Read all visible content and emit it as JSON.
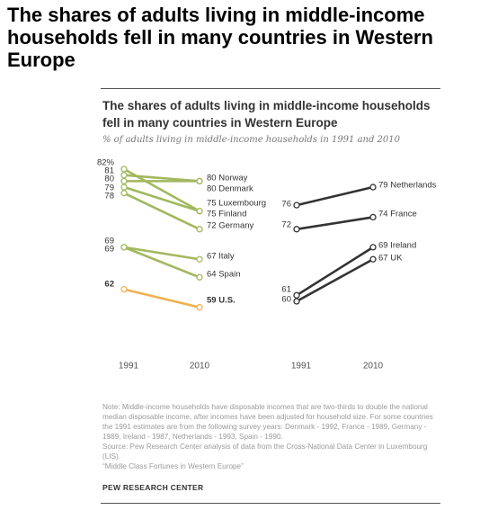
{
  "headline": "The shares of adults living in middle-income households fell in many countries in Western Europe",
  "colors": {
    "europe_line": "#a2b85e",
    "us_line": "#f0b152",
    "other_line": "#333333",
    "label_text": "#333333",
    "axis_text": "#555555"
  },
  "chart_data": {
    "type": "line",
    "title": "The shares of adults living in middle-income households fell in many countries in Western Europe",
    "subtitle": "% of adults living in middle-income households in 1991 and 2010",
    "panels": [
      {
        "x": [
          "1991",
          "2010"
        ],
        "ylim": [
          58,
          83
        ],
        "start_labels": [
          "82%",
          "81",
          "80",
          "79",
          "78",
          "69",
          "69",
          "62"
        ],
        "series": [
          {
            "name": "Norway",
            "values": [
              81,
              80
            ],
            "group": "europe",
            "end_label": "80 Norway"
          },
          {
            "name": "Denmark",
            "values": [
              80,
              80
            ],
            "group": "europe",
            "end_label": "80 Denmark"
          },
          {
            "name": "Luxembourg",
            "values": [
              82,
              75
            ],
            "group": "europe",
            "end_label": "75 Luxembourg"
          },
          {
            "name": "Finland",
            "values": [
              79,
              75
            ],
            "group": "europe",
            "end_label": "75 Finland"
          },
          {
            "name": "Germany",
            "values": [
              78,
              72
            ],
            "group": "europe",
            "end_label": "72 Germany"
          },
          {
            "name": "Italy",
            "values": [
              69,
              67
            ],
            "group": "europe",
            "end_label": "67 Italy"
          },
          {
            "name": "Spain",
            "values": [
              69,
              64
            ],
            "group": "europe",
            "end_label": "64 Spain"
          },
          {
            "name": "U.S.",
            "values": [
              62,
              59
            ],
            "group": "us",
            "end_label": "59 U.S."
          }
        ]
      },
      {
        "x": [
          "1991",
          "2010"
        ],
        "ylim": [
          58,
          83
        ],
        "series": [
          {
            "name": "Netherlands",
            "values": [
              76,
              79
            ],
            "group": "other",
            "start_label": "76",
            "end_label": "79 Netherlands"
          },
          {
            "name": "France",
            "values": [
              72,
              74
            ],
            "group": "other",
            "start_label": "72",
            "end_label": "74 France"
          },
          {
            "name": "Ireland",
            "values": [
              61,
              69
            ],
            "group": "other",
            "start_label": "61",
            "end_label": "69 Ireland"
          },
          {
            "name": "UK",
            "values": [
              60,
              67
            ],
            "group": "other",
            "start_label": "60",
            "end_label": "67 UK"
          }
        ]
      }
    ]
  },
  "notes": [
    "Note: Middle-income households have disposable incomes that are two-thirds to double the national median disposable income, after incomes have been adjusted for household size. For some countries the 1991 estimates are from the following survey years: Denmark - 1992, France - 1989, Germany - 1989, Ireland - 1987, Netherlands - 1993, Spain - 1990.",
    "Source: Pew Research Center analysis of data from the Cross-National Data Center in Luxembourg (LIS).",
    "“Middle Class Fortunes in Western Europe”"
  ],
  "source_org": "PEW RESEARCH CENTER"
}
